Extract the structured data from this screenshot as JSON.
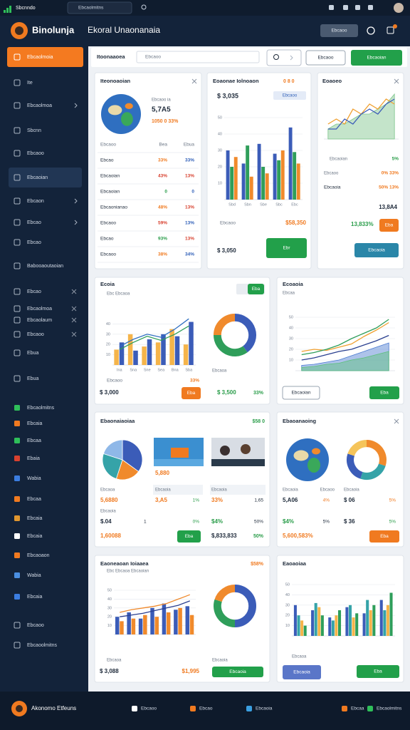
{
  "topbar": {
    "app": "Sbcnndo",
    "search": "Ebcaolmitns"
  },
  "header": {
    "brand": "Binolunja",
    "title": "Ekoral Unaonanaia",
    "button": "Ebcaoo"
  },
  "sidebar": [
    "Ebcaolmoia",
    "Ite",
    "Ebcaolmoa",
    "Sbcnn",
    "Ebcaoo",
    "Ebcaoian",
    "Ebcaon",
    "Ebcao",
    "Ebcao",
    "Babooaoutaoian",
    "Ebcao",
    "Ebcaolmoa",
    "Ebcaolaum",
    "Ebcaoo",
    "Ebua",
    "Ebua",
    "Ebcaolmitns",
    "Ebcaia",
    "Ebcaa",
    "Ebaia",
    "Wabia",
    "Ebcaa",
    "Ebcaia",
    "Ebcaia",
    "Ebcaoaon",
    "Wabia",
    "Ebcaia",
    "Ebcaoo",
    "Ebcaoolmitns"
  ],
  "toolbar": {
    "title": "Itoonaaoea",
    "search": "Ebcaoo",
    "buttons": [
      "Ebcaoo",
      "Ebcaoian"
    ]
  },
  "cards": [
    {
      "title": "Iteonoaoian",
      "texts": [
        "Ebcaoo ia",
        "5,7A5",
        "1050 0 33%"
      ],
      "rows": [
        [
          "Ebcaoo",
          "Bea",
          "Ebua"
        ],
        [
          "Ebcao",
          "33%",
          "33%"
        ],
        [
          "Ebcaoian",
          "43%",
          "13%"
        ],
        [
          "Ebcaoian",
          "0",
          "0"
        ],
        [
          "Ebcaonianao",
          "48%",
          "13%"
        ],
        [
          "Ebcaoo",
          "59%",
          "13%"
        ],
        [
          "Ebcao",
          "93%",
          "13%"
        ],
        [
          "Ebcaoo",
          "38%",
          "34%"
        ]
      ]
    },
    {
      "title": "Eoaonae Iolnoaon",
      "texts": [
        "0 8 0",
        "Ebcaoo",
        "$ 3,035",
        "Ebcaoo",
        "$58,350",
        "$ 3,050"
      ],
      "buttons": [
        "Ebr"
      ],
      "charts": [
        {
          "type": "bar",
          "ylim": [
            0,
            50
          ],
          "yticks": [
            10,
            20,
            30,
            40,
            50
          ],
          "categories": [
            "Sbd",
            "Sbn",
            "Sbe",
            "Sbc",
            "Ebc"
          ],
          "series": [
            {
              "kind": "bar",
              "color": "#3b5cb8",
              "values": [
                30,
                22,
                34,
                28,
                44
              ]
            },
            {
              "kind": "bar",
              "color": "#2f9e5a",
              "values": [
                20,
                33,
                20,
                24,
                29
              ]
            },
            {
              "kind": "bar",
              "color": "#f08a2c",
              "values": [
                26,
                14,
                16,
                30,
                22
              ]
            }
          ]
        }
      ]
    },
    {
      "title": "Eoaoeo",
      "texts": [
        "Ebcaoian",
        "5%",
        "Ebcaoo",
        "0%  33%",
        "Ebcaoia",
        "50%  13%",
        "13,8A4",
        "13,833%"
      ],
      "buttons": [
        "Eba",
        "Ebcaoia"
      ],
      "charts": [
        {
          "type": "bar",
          "ylim": [
            0,
            10
          ],
          "series": [
            {
              "kind": "area",
              "color": "#7cc48a",
              "values": [
                2,
                3,
                3,
                4,
                5,
                5,
                6,
                7,
                9
              ]
            },
            {
              "kind": "line",
              "color": "#f0a030",
              "values": [
                3,
                4,
                3,
                6,
                5,
                7,
                6,
                8,
                7
              ]
            },
            {
              "kind": "line",
              "color": "#3b5cb8",
              "values": [
                2,
                2,
                4,
                3,
                5,
                6,
                5,
                7,
                8
              ]
            }
          ]
        }
      ]
    },
    {
      "title": "Ecoia",
      "texts": [
        "Ebc Ebcaoa",
        "Ebcaoo",
        "33%",
        "$ 3,000",
        "Ebcaoa",
        "$ 3,500",
        "33%"
      ],
      "buttons": [
        "Eba",
        "Eba"
      ],
      "charts": [
        {
          "type": "bar",
          "ylim": [
            0,
            50
          ],
          "yticks": [
            10,
            20,
            30,
            40
          ],
          "categories": [
            "Ina",
            "Sna",
            "Sne",
            "Sea",
            "Bna",
            "Sba"
          ],
          "series": [
            {
              "kind": "bar",
              "color": "#f5b44a",
              "values": [
                15,
                30,
                18,
                22,
                35,
                20
              ]
            },
            {
              "kind": "bar",
              "color": "#3b5cb8",
              "values": [
                22,
                14,
                25,
                30,
                28,
                42
              ]
            },
            {
              "kind": "line",
              "color": "#2f6fc0",
              "values": [
                18,
                25,
                30,
                27,
                35,
                45
              ]
            },
            {
              "kind": "line",
              "color": "#2f9e5a",
              "values": [
                15,
                22,
                28,
                24,
                30,
                38
              ]
            }
          ]
        },
        {
          "type": "donut",
          "values": [
            40,
            35,
            25
          ],
          "colors": [
            "#3b5cb8",
            "#2f9e5a",
            "#f08a2c"
          ]
        }
      ]
    },
    {
      "title": "Ecoaoia",
      "texts": [
        "Ebcaa"
      ],
      "buttons": [
        "Ebcaoian",
        "Eba"
      ],
      "charts": [
        {
          "type": "bar",
          "ylim": [
            0,
            50
          ],
          "yticks": [
            10,
            20,
            30,
            40,
            50
          ],
          "series": [
            {
              "kind": "area",
              "color": "#4a7ad0",
              "values": [
                5,
                6,
                8,
                10,
                14,
                18,
                22,
                26
              ]
            },
            {
              "kind": "area",
              "color": "#5cc07a",
              "values": [
                3,
                4,
                6,
                7,
                10,
                12,
                15,
                18
              ]
            },
            {
              "kind": "line",
              "color": "#f0a030",
              "values": [
                18,
                20,
                19,
                22,
                25,
                32,
                38,
                45
              ]
            },
            {
              "kind": "line",
              "color": "#2f9e5a",
              "values": [
                15,
                17,
                20,
                24,
                30,
                35,
                40,
                48
              ]
            },
            {
              "kind": "line",
              "color": "#2a3f8f",
              "values": [
                10,
                12,
                15,
                18,
                20,
                24,
                28,
                33
              ]
            }
          ]
        }
      ]
    },
    {
      "title": "Ebaonaiaoiaa",
      "texts": [
        "$58 0",
        "5,880",
        "Ebcaoa",
        "Ebcaoia",
        "Ebcaoia",
        "5,6880",
        "3,A5",
        "1%",
        "33%",
        "1,65",
        "Ebcaoia",
        "$.04",
        "1",
        "0%",
        "$4%",
        "50%",
        "1,60088",
        "$,833,833",
        "50%"
      ],
      "buttons": [
        "Eba"
      ],
      "charts": [
        {
          "type": "pie",
          "values": [
            35,
            20,
            25,
            20
          ],
          "colors": [
            "#3b5cb8",
            "#f08a2c",
            "#35a3a8",
            "#8fb8e8"
          ]
        }
      ]
    },
    {
      "title": "Ebaoanaoing",
      "texts": [
        "Ebcaoia",
        "Ebcaoo",
        "Ebcaoia",
        "5,A06",
        "4%",
        "$ 06",
        "5%",
        "$4%",
        "5%",
        "$ 36",
        "5%",
        "5,600,583%"
      ],
      "buttons": [
        "Eba"
      ],
      "charts": [
        {
          "type": "donut",
          "values": [
            30,
            25,
            25,
            20
          ],
          "colors": [
            "#f08a2c",
            "#35a3a8",
            "#3b5cb8",
            "#f5c45a"
          ]
        }
      ]
    },
    {
      "title": "Eaoneaoan Ioiaaea",
      "texts": [
        "$58%",
        "Ebc Ebcaoa Ebcaoian",
        "Ebcaoa",
        "$ 3,088",
        "Ebcaoia",
        "$1,995"
      ],
      "buttons": [
        "Ebcaoia"
      ],
      "charts": [
        {
          "type": "bar",
          "ylim": [
            0,
            50
          ],
          "yticks": [
            10,
            20,
            30,
            40,
            50
          ],
          "series": [
            {
              "kind": "bar",
              "color": "#3b5cb8",
              "values": [
                20,
                25,
                18,
                30,
                35,
                28,
                32
              ]
            },
            {
              "kind": "bar",
              "color": "#f08a2c",
              "values": [
                15,
                18,
                22,
                20,
                25,
                30,
                22
              ]
            },
            {
              "kind": "line",
              "color": "#f08a2c",
              "values": [
                25,
                28,
                30,
                32,
                35,
                40,
                45
              ]
            },
            {
              "kind": "line",
              "color": "#2a3f8f",
              "values": [
                20,
                22,
                24,
                27,
                30,
                33,
                38
              ]
            }
          ]
        },
        {
          "type": "donut",
          "values": [
            50,
            30,
            20
          ],
          "colors": [
            "#3b5cb8",
            "#2f9e5a",
            "#f08a2c"
          ]
        }
      ]
    },
    {
      "title": "Eaoaoiaa",
      "texts": [
        "Ebcaoa"
      ],
      "buttons": [
        "Ebcaoia",
        "Eba"
      ],
      "charts": [
        {
          "type": "bar",
          "ylim": [
            0,
            50
          ],
          "yticks": [
            10,
            20,
            30,
            40,
            50
          ],
          "series": [
            {
              "kind": "bar",
              "color": "#3b5cb8",
              "values": [
                30,
                25,
                18,
                28,
                22,
                35
              ]
            },
            {
              "kind": "bar",
              "color": "#35a3a8",
              "values": [
                20,
                32,
                15,
                30,
                35,
                25
              ]
            },
            {
              "kind": "bar",
              "color": "#f5b44a",
              "values": [
                15,
                28,
                20,
                18,
                25,
                30
              ]
            },
            {
              "kind": "bar",
              "color": "#2f9e5a",
              "values": [
                10,
                20,
                25,
                22,
                30,
                42
              ]
            }
          ]
        }
      ]
    }
  ],
  "footer": {
    "brand": "Akonomo Etfeuns",
    "items": [
      "Ebcaoo",
      "Ebcao",
      "Ebcaoia",
      "Ebcaa",
      "Ebcaolmitns"
    ]
  }
}
